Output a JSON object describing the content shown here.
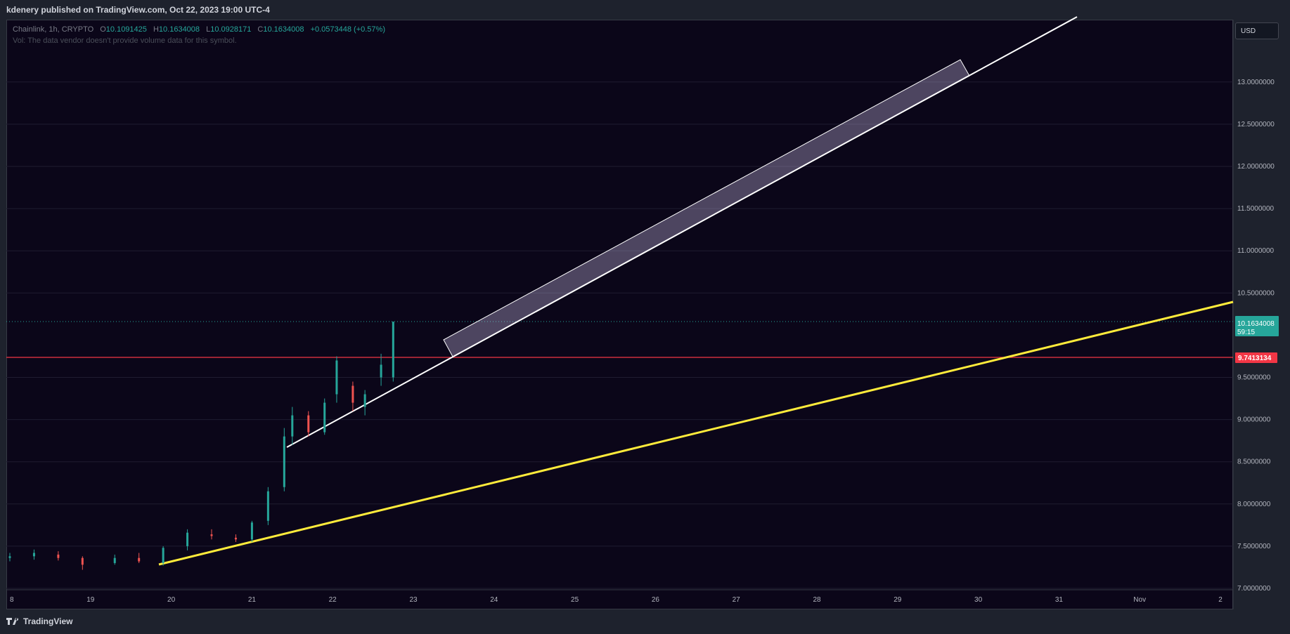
{
  "header": {
    "publisher": "kdenery published on TradingView.com, Oct 22, 2023 19:00 UTC-4"
  },
  "legend": {
    "symbol": "Chainlink, 1h, CRYPTO",
    "open_label": "O",
    "open": "10.1091425",
    "high_label": "H",
    "high": "10.1634008",
    "low_label": "L",
    "low": "10.0928171",
    "close_label": "C",
    "close": "10.1634008",
    "change": "+0.0573448 (+0.57%)",
    "volume_note": "Vol: The data vendor doesn't provide volume data for this symbol."
  },
  "currency_button": "USD",
  "price_axis": {
    "ticks": [
      "13.0000000",
      "12.5000000",
      "12.0000000",
      "11.5000000",
      "11.0000000",
      "10.5000000",
      "9.5000000",
      "9.0000000",
      "8.5000000",
      "8.0000000",
      "7.5000000",
      "7.0000000"
    ],
    "current_price": "10.1634008",
    "countdown": "59:15",
    "horizontal_level": "9.7413134"
  },
  "time_axis": {
    "ticks": [
      "8",
      "19",
      "20",
      "21",
      "22",
      "23",
      "24",
      "25",
      "26",
      "27",
      "28",
      "29",
      "30",
      "31",
      "Nov",
      "2"
    ]
  },
  "colors": {
    "background": "#0b0619",
    "up": "#26a69a",
    "down": "#ef5350",
    "level": "#f23645",
    "trend_yellow": "#ffeb3b",
    "trend_white": "#ffffff"
  },
  "chart_data": {
    "type": "candlestick",
    "symbol": "Chainlink",
    "interval": "1h",
    "ylim": [
      7.0,
      13.5
    ],
    "current_price": 10.1634008,
    "horizontal_line": 9.7413134,
    "candles_approx": [
      {
        "t": 18.0,
        "o": 7.36,
        "h": 7.42,
        "l": 7.32,
        "c": 7.38
      },
      {
        "t": 18.3,
        "o": 7.38,
        "h": 7.46,
        "l": 7.34,
        "c": 7.42
      },
      {
        "t": 18.6,
        "o": 7.4,
        "h": 7.44,
        "l": 7.33,
        "c": 7.36
      },
      {
        "t": 18.9,
        "o": 7.36,
        "h": 7.38,
        "l": 7.22,
        "c": 7.28
      },
      {
        "t": 19.3,
        "o": 7.3,
        "h": 7.4,
        "l": 7.28,
        "c": 7.36
      },
      {
        "t": 19.6,
        "o": 7.36,
        "h": 7.42,
        "l": 7.3,
        "c": 7.32
      },
      {
        "t": 19.9,
        "o": 7.3,
        "h": 7.5,
        "l": 7.27,
        "c": 7.48
      },
      {
        "t": 20.2,
        "o": 7.5,
        "h": 7.7,
        "l": 7.45,
        "c": 7.66
      },
      {
        "t": 20.5,
        "o": 7.64,
        "h": 7.7,
        "l": 7.58,
        "c": 7.62
      },
      {
        "t": 20.8,
        "o": 7.6,
        "h": 7.64,
        "l": 7.55,
        "c": 7.58
      },
      {
        "t": 21.0,
        "o": 7.58,
        "h": 7.8,
        "l": 7.55,
        "c": 7.78
      },
      {
        "t": 21.2,
        "o": 7.8,
        "h": 8.2,
        "l": 7.75,
        "c": 8.15
      },
      {
        "t": 21.4,
        "o": 8.2,
        "h": 8.9,
        "l": 8.15,
        "c": 8.8
      },
      {
        "t": 21.5,
        "o": 8.8,
        "h": 9.15,
        "l": 8.7,
        "c": 9.05
      },
      {
        "t": 21.7,
        "o": 9.05,
        "h": 9.1,
        "l": 8.8,
        "c": 8.85
      },
      {
        "t": 21.9,
        "o": 8.85,
        "h": 9.25,
        "l": 8.82,
        "c": 9.2
      },
      {
        "t": 22.05,
        "o": 9.3,
        "h": 9.75,
        "l": 9.2,
        "c": 9.7
      },
      {
        "t": 22.25,
        "o": 9.4,
        "h": 9.45,
        "l": 9.1,
        "c": 9.2
      },
      {
        "t": 22.4,
        "o": 9.15,
        "h": 9.35,
        "l": 9.05,
        "c": 9.3
      },
      {
        "t": 22.6,
        "o": 9.5,
        "h": 9.78,
        "l": 9.4,
        "c": 9.65
      },
      {
        "t": 22.75,
        "o": 9.5,
        "h": 10.16,
        "l": 9.45,
        "c": 10.16
      }
    ],
    "annotations": [
      "yellow ascending trendline",
      "white ascending trendline",
      "translucent projected channel rectangle",
      "red horizontal level at 9.7413134"
    ]
  }
}
